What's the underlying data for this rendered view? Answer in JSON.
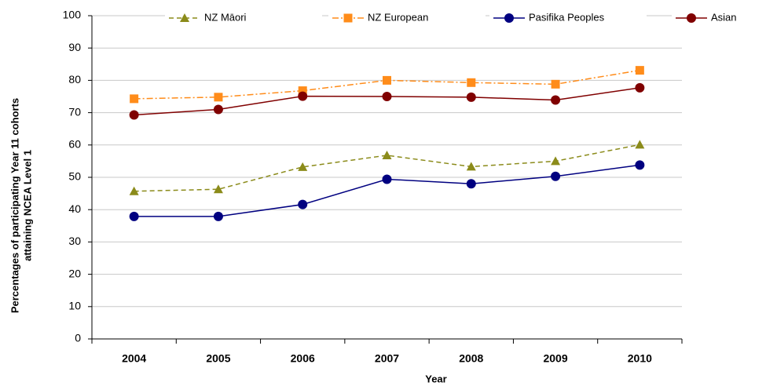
{
  "chart_data": {
    "type": "line",
    "y_label": [
      "Percentages of participating Year 11 cohorts",
      "attaining NCEA Level 1"
    ],
    "x_label": "Year",
    "categories": [
      "2004",
      "2005",
      "2006",
      "2007",
      "2008",
      "2009",
      "2010"
    ],
    "series": [
      {
        "name": "NZ Māori",
        "color": "#8b8b1a",
        "dash": "6,4",
        "marker": "triangle",
        "values": [
          45.7,
          46.3,
          53.2,
          56.8,
          53.3,
          55,
          60.1
        ]
      },
      {
        "name": "NZ European",
        "color": "#ff8c1a",
        "dash": "8,3,2,3",
        "marker": "square",
        "values": [
          74.3,
          74.8,
          76.8,
          80,
          79.3,
          78.8,
          83.1
        ]
      },
      {
        "name": "Pasifika Peoples",
        "color": "#000080",
        "dash": "none",
        "marker": "circle",
        "values": [
          37.9,
          37.9,
          41.6,
          49.4,
          48,
          50.3,
          53.8
        ]
      },
      {
        "name": "Asian",
        "color": "#800000",
        "dash": "none",
        "marker": "circle",
        "values": [
          69.3,
          71,
          75.1,
          75,
          74.8,
          73.9,
          77.7
        ]
      }
    ],
    "ylim": [
      0,
      100
    ],
    "yticks": [
      0,
      10,
      20,
      30,
      40,
      50,
      60,
      70,
      80,
      90,
      100
    ],
    "grid": true,
    "legend": "top"
  }
}
